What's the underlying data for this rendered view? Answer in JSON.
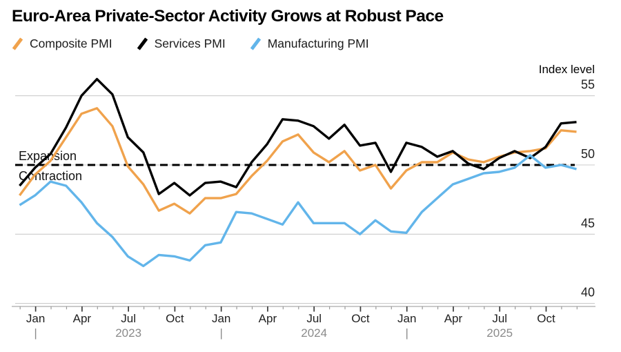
{
  "title": "Euro-Area Private-Sector Activity Grows at Robust Pace",
  "threshold_labels": {
    "above": "Expansion",
    "below": "Contraction"
  },
  "chart_data": {
    "type": "line",
    "title": "Euro-Area Private-Sector Activity Grows at Robust Pace",
    "legend_position": "top-left",
    "grid": "horizontal",
    "x": [
      "Nov 2022",
      "Dec 2022",
      "Jan 2023",
      "Feb 2023",
      "Mar 2023",
      "Apr 2023",
      "May 2023",
      "Jun 2023",
      "Jul 2023",
      "Aug 2023",
      "Sep 2023",
      "Oct 2023",
      "Nov 2023",
      "Dec 2023",
      "Jan 2024",
      "Feb 2024",
      "Mar 2024",
      "Apr 2024",
      "May 2024",
      "Jun 2024",
      "Jul 2024",
      "Aug 2024",
      "Sep 2024",
      "Oct 2024",
      "Nov 2024",
      "Dec 2024",
      "Jan 2025",
      "Feb 2025",
      "Mar 2025",
      "Apr 2025",
      "May 2025",
      "Jun 2025",
      "Jul 2025",
      "Aug 2025",
      "Sep 2025",
      "Oct 2025",
      "Nov 2025"
    ],
    "series": [
      {
        "name": "Composite PMI",
        "color": "#F0A24C",
        "values": [
          47.8,
          49.3,
          50.3,
          52.0,
          53.7,
          54.1,
          52.8,
          49.9,
          48.6,
          46.7,
          47.2,
          46.5,
          47.6,
          47.6,
          47.9,
          49.2,
          50.3,
          51.7,
          52.2,
          50.9,
          50.2,
          51.0,
          49.6,
          50.0,
          48.3,
          49.6,
          50.2,
          50.2,
          50.9,
          50.4,
          50.2,
          50.6,
          50.9,
          51.0,
          51.2,
          52.5,
          52.4
        ]
      },
      {
        "name": "Services PMI",
        "color": "#000000",
        "values": [
          48.5,
          49.8,
          50.8,
          52.7,
          55.0,
          56.2,
          55.1,
          52.0,
          50.9,
          47.9,
          48.7,
          47.8,
          48.7,
          48.8,
          48.4,
          50.2,
          51.5,
          53.3,
          53.2,
          52.8,
          51.9,
          52.9,
          51.4,
          51.6,
          49.5,
          51.6,
          51.3,
          50.6,
          51.0,
          50.1,
          49.7,
          50.5,
          51.0,
          50.5,
          51.3,
          53.0,
          53.1
        ]
      },
      {
        "name": "Manufacturing PMI",
        "color": "#62B5EA",
        "values": [
          47.1,
          47.8,
          48.8,
          48.5,
          47.3,
          45.8,
          44.8,
          43.4,
          42.7,
          43.5,
          43.4,
          43.1,
          44.2,
          44.4,
          46.6,
          46.5,
          46.1,
          45.7,
          47.3,
          45.8,
          45.8,
          45.8,
          45.0,
          46.0,
          45.2,
          45.1,
          46.6,
          47.6,
          48.6,
          49.0,
          49.4,
          49.5,
          49.8,
          50.7,
          49.8,
          50.0,
          49.7
        ]
      }
    ],
    "y_axis": {
      "title": "Index level",
      "ticks": [
        55,
        50,
        45,
        40
      ],
      "range": [
        40,
        55.8
      ]
    },
    "x_axis": {
      "tick_labels": [
        "Jan",
        "Apr",
        "Jul",
        "Oct",
        "Jan",
        "Apr",
        "Jul",
        "Oct",
        "Jan",
        "Apr",
        "Jul",
        "Oct"
      ],
      "years": [
        "2023",
        "2024",
        "2025"
      ],
      "year_separator": "|"
    },
    "threshold": {
      "value": 50,
      "style": "dashed",
      "color": "#000000"
    },
    "grid_color": "#cccccc"
  }
}
